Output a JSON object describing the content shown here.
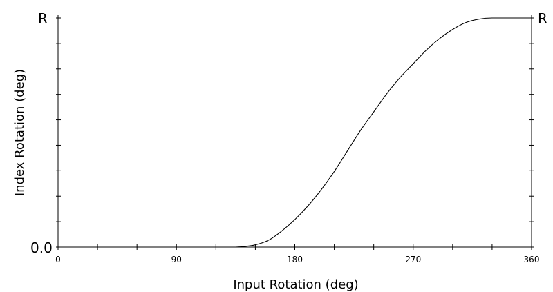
{
  "chart_data": {
    "type": "line",
    "xlabel": "Input Rotation (deg)",
    "ylabel": "Index Rotation (deg)",
    "xlim": [
      0,
      360
    ],
    "ylim": [
      0,
      1
    ],
    "x_ticks": [
      0,
      90,
      180,
      270,
      360
    ],
    "x_tick_labels": [
      "0",
      "90",
      "180",
      "270",
      "360"
    ],
    "y_left_labels": {
      "min": "0.0",
      "max": "R"
    },
    "y_right_labels": {
      "max": "R"
    },
    "grid": false,
    "series": [
      {
        "x": [
          0,
          90,
          120,
          135,
          145,
          150,
          160,
          170,
          180,
          190,
          200,
          210,
          220,
          230,
          240,
          250,
          260,
          270,
          280,
          290,
          300,
          310,
          320,
          330,
          335,
          340,
          350,
          360
        ],
        "y": [
          0,
          0,
          0,
          0,
          0.005,
          0.01,
          0.03,
          0.07,
          0.12,
          0.18,
          0.25,
          0.33,
          0.42,
          0.51,
          0.59,
          0.67,
          0.74,
          0.8,
          0.86,
          0.91,
          0.95,
          0.98,
          0.995,
          1,
          1,
          1,
          1,
          1
        ]
      }
    ]
  }
}
